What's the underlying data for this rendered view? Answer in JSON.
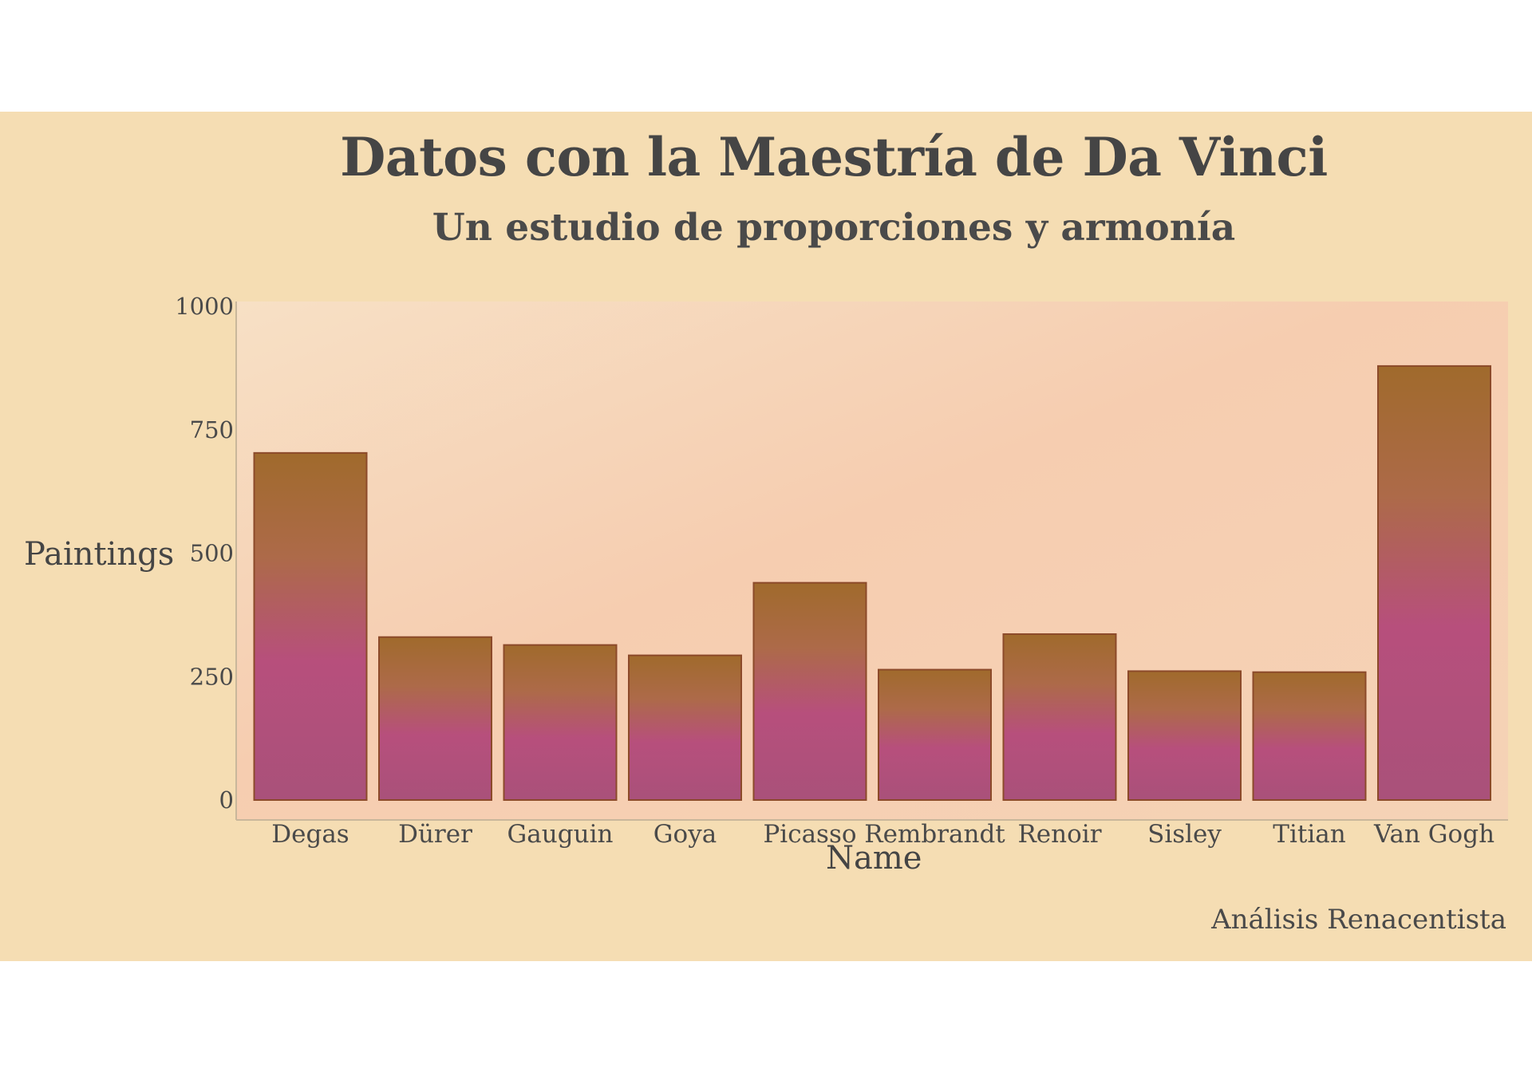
{
  "chart_data": {
    "type": "bar",
    "title": "Datos con la Maestría de Da Vinci",
    "subtitle": "Un estudio de proporciones y armonía",
    "xlabel": "Name",
    "ylabel": "Paintings",
    "caption": "Análisis Renacentista",
    "categories": [
      "Degas",
      "Dürer",
      "Gauguin",
      "Goya",
      "Picasso",
      "Rembrandt",
      "Renoir",
      "Sisley",
      "Titian",
      "Van Gogh"
    ],
    "values": [
      703,
      330,
      314,
      293,
      440,
      264,
      336,
      261,
      259,
      879
    ],
    "ylim": [
      0,
      1000
    ],
    "yticks": [
      0,
      250,
      500,
      750,
      1000
    ],
    "grid": false,
    "colors": {
      "panel_background": "#f5ddb3",
      "plot_background": "#f6cba9",
      "bar_top": "#a3702f",
      "bar_bottom": "#b94a86"
    }
  }
}
